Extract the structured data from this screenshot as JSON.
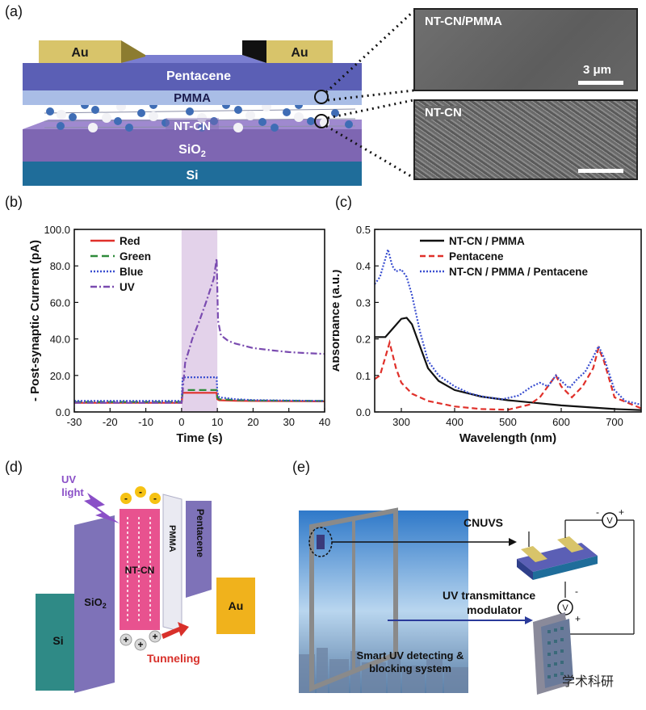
{
  "panels": {
    "a": "(a)",
    "b": "(b)",
    "c": "(c)",
    "d": "(d)",
    "e": "(e)"
  },
  "panel_a": {
    "layers": {
      "au_left": "Au",
      "au_right": "Au",
      "pentacene": "Pentacene",
      "pmma": "PMMA",
      "ntcn": "NT-CN",
      "sio2": "SiO",
      "sio2_sub": "2",
      "si": "Si"
    },
    "sem_top": {
      "label": "NT-CN/PMMA",
      "scale": "3 μm"
    },
    "sem_bottom": {
      "label": "NT-CN"
    },
    "colors": {
      "au": "#d8c46a",
      "pentacene": "#5b5fb5",
      "pmma": "#a9bde6",
      "sio2": "#7e66b2",
      "si": "#1f6d9a"
    }
  },
  "panel_d": {
    "uv_label_1": "UV",
    "uv_label_2": "light",
    "si": "Si",
    "sio2": "SiO",
    "sio2_sub": "2",
    "ntcn": "NT-CN",
    "pmma": "PMMA",
    "pentacene": "Pentacene",
    "au": "Au",
    "tunneling": "Tunneling",
    "minus": "-",
    "plus": "+"
  },
  "panel_e": {
    "cnuvs": "CNUVS",
    "modulator_1": "UV transmittance",
    "modulator_2": "modulator",
    "system_1": "Smart UV detecting &",
    "system_2": "blocking system",
    "v": "V",
    "minus": "-",
    "plus": "+"
  },
  "watermark": "学术科研",
  "chart_data": [
    {
      "type": "line",
      "xlabel": "Time (s)",
      "ylabel": "- Post-synaptic Current (pA)",
      "xlim": [
        -30,
        40
      ],
      "ylim": [
        0,
        100
      ],
      "xticks": [
        -30,
        -20,
        -10,
        0,
        10,
        20,
        30,
        40
      ],
      "xtick_labels": [
        "-30",
        "-20",
        "-10",
        "0",
        "10",
        "20",
        "30",
        "40"
      ],
      "yticks": [
        0,
        20,
        40,
        60,
        80,
        100
      ],
      "ytick_labels": [
        "0.0",
        "20.0",
        "40.0",
        "60.0",
        "80.0",
        "100.0"
      ],
      "shaded_region": [
        0,
        10
      ],
      "legend_position": "top-left",
      "series": [
        {
          "name": "Red",
          "color": "#e0302a",
          "dash": "solid",
          "x": [
            -30,
            -0.5,
            0,
            0.3,
            9.8,
            10,
            10.5,
            15,
            20,
            40
          ],
          "y": [
            5,
            5,
            5,
            10.5,
            10.5,
            7,
            6.4,
            6.1,
            6,
            5.8
          ]
        },
        {
          "name": "Green",
          "color": "#2e8b3a",
          "dash": "long",
          "x": [
            -30,
            -0.5,
            0,
            0.3,
            9.8,
            10,
            10.5,
            15,
            20,
            40
          ],
          "y": [
            5.5,
            5.5,
            5.5,
            12,
            12,
            8,
            7,
            6.5,
            6.3,
            6
          ]
        },
        {
          "name": "Blue",
          "color": "#3a4fd0",
          "dash": "dot",
          "x": [
            -30,
            -0.5,
            0,
            0.3,
            9.8,
            10,
            10.5,
            15,
            20,
            40
          ],
          "y": [
            6,
            6,
            6,
            19,
            19,
            11,
            8,
            7,
            6.5,
            6
          ]
        },
        {
          "name": "UV",
          "color": "#7a4bb0",
          "dash": "dashdot",
          "x": [
            -30,
            -0.5,
            0,
            1,
            3,
            5,
            7,
            9,
            9.8,
            10.2,
            11,
            13,
            15,
            20,
            25,
            30,
            35,
            40
          ],
          "y": [
            5,
            5,
            5,
            27,
            40,
            50,
            61,
            73,
            84,
            50,
            42,
            39,
            37.5,
            35,
            33.8,
            32.8,
            32.2,
            31.8
          ]
        }
      ]
    },
    {
      "type": "line",
      "xlabel": "Wavelength (nm)",
      "ylabel": "Absorbance (a.u.)",
      "xlim": [
        250,
        750
      ],
      "ylim": [
        0,
        0.5
      ],
      "xticks": [
        300,
        400,
        500,
        600,
        700
      ],
      "xtick_labels": [
        "300",
        "400",
        "500",
        "600",
        "700"
      ],
      "yticks": [
        0,
        0.1,
        0.2,
        0.3,
        0.4,
        0.5
      ],
      "ytick_labels": [
        "0.0",
        "0.1",
        "0.2",
        "0.3",
        "0.4",
        "0.5"
      ],
      "legend_position": "top-right",
      "series": [
        {
          "name": "NT-CN / PMMA",
          "color": "#111111",
          "dash": "solid",
          "x": [
            250,
            270,
            285,
            300,
            310,
            320,
            335,
            350,
            370,
            400,
            450,
            500,
            550,
            600,
            650,
            700,
            750
          ],
          "y": [
            0.205,
            0.205,
            0.23,
            0.255,
            0.258,
            0.24,
            0.18,
            0.12,
            0.085,
            0.06,
            0.042,
            0.032,
            0.025,
            0.018,
            0.013,
            0.008,
            0.005
          ]
        },
        {
          "name": "Pentacene",
          "color": "#e0302a",
          "dash": "dash",
          "x": [
            250,
            260,
            270,
            278,
            290,
            300,
            320,
            350,
            400,
            450,
            500,
            540,
            560,
            580,
            590,
            600,
            620,
            640,
            660,
            670,
            680,
            700,
            750
          ],
          "y": [
            0.09,
            0.1,
            0.15,
            0.19,
            0.12,
            0.08,
            0.05,
            0.03,
            0.015,
            0.008,
            0.006,
            0.02,
            0.04,
            0.08,
            0.1,
            0.07,
            0.04,
            0.07,
            0.12,
            0.175,
            0.14,
            0.04,
            0.01
          ]
        },
        {
          "name": "NT-CN / PMMA / Pentacene",
          "color": "#3a4fd0",
          "dash": "dot",
          "x": [
            250,
            260,
            270,
            275,
            283,
            290,
            300,
            310,
            320,
            335,
            350,
            370,
            400,
            430,
            460,
            490,
            520,
            545,
            560,
            575,
            590,
            600,
            615,
            630,
            645,
            660,
            670,
            680,
            700,
            720,
            750
          ],
          "y": [
            0.35,
            0.37,
            0.42,
            0.445,
            0.4,
            0.385,
            0.39,
            0.37,
            0.32,
            0.22,
            0.14,
            0.1,
            0.07,
            0.05,
            0.04,
            0.035,
            0.045,
            0.07,
            0.08,
            0.07,
            0.1,
            0.085,
            0.065,
            0.09,
            0.11,
            0.15,
            0.18,
            0.15,
            0.06,
            0.03,
            0.02
          ]
        }
      ]
    }
  ]
}
